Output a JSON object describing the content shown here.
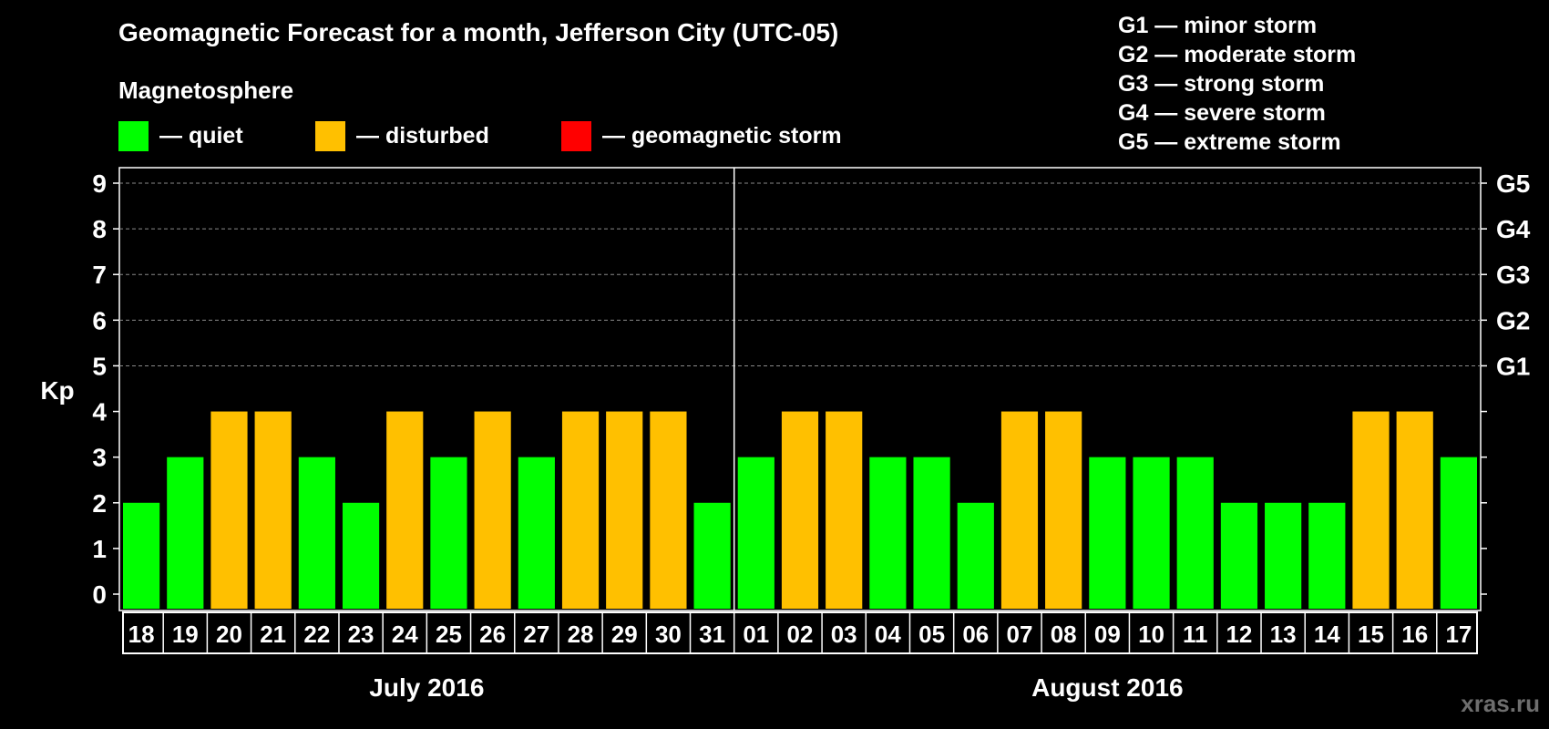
{
  "title": "Geomagnetic Forecast for a month, Jefferson City (UTC-05)",
  "subtitle": "Magnetosphere",
  "legend": [
    {
      "label": "— quiet",
      "color": "#00ff00"
    },
    {
      "label": "— disturbed",
      "color": "#ffc000"
    },
    {
      "label": "— geomagnetic storm",
      "color": "#ff0000"
    }
  ],
  "storm_levels": [
    "G1 — minor storm",
    "G2 — moderate storm",
    "G3 — strong storm",
    "G4 — severe storm",
    "G5 — extreme storm"
  ],
  "watermark": "xras.ru",
  "chart_data": {
    "type": "bar",
    "title": "Geomagnetic Forecast for a month, Jefferson City (UTC-05)",
    "ylabel": "Kp",
    "ylim": [
      0,
      9
    ],
    "yticks": [
      0,
      1,
      2,
      3,
      4,
      5,
      6,
      7,
      8,
      9
    ],
    "right_axis_labels": [
      {
        "value": 5,
        "label": "G1"
      },
      {
        "value": 6,
        "label": "G2"
      },
      {
        "value": 7,
        "label": "G3"
      },
      {
        "value": 8,
        "label": "G4"
      },
      {
        "value": 9,
        "label": "G5"
      }
    ],
    "grid": "dashed horizontal at 5-9",
    "categories": [
      "18",
      "19",
      "20",
      "21",
      "22",
      "23",
      "24",
      "25",
      "26",
      "27",
      "28",
      "29",
      "30",
      "31",
      "01",
      "02",
      "03",
      "04",
      "05",
      "06",
      "07",
      "08",
      "09",
      "10",
      "11",
      "12",
      "13",
      "14",
      "15",
      "16",
      "17"
    ],
    "values": [
      2,
      3,
      4,
      4,
      3,
      2,
      4,
      3,
      4,
      3,
      4,
      4,
      4,
      2,
      3,
      4,
      4,
      3,
      3,
      2,
      4,
      4,
      3,
      3,
      3,
      2,
      2,
      2,
      4,
      4,
      3
    ],
    "months": [
      {
        "label": "July 2016",
        "start": 0,
        "end": 13
      },
      {
        "label": "August 2016",
        "start": 14,
        "end": 30
      }
    ],
    "color_rule": {
      "quiet": "#00ff00",
      "disturbed": "#ffc000",
      "storm": "#ff0000"
    }
  }
}
